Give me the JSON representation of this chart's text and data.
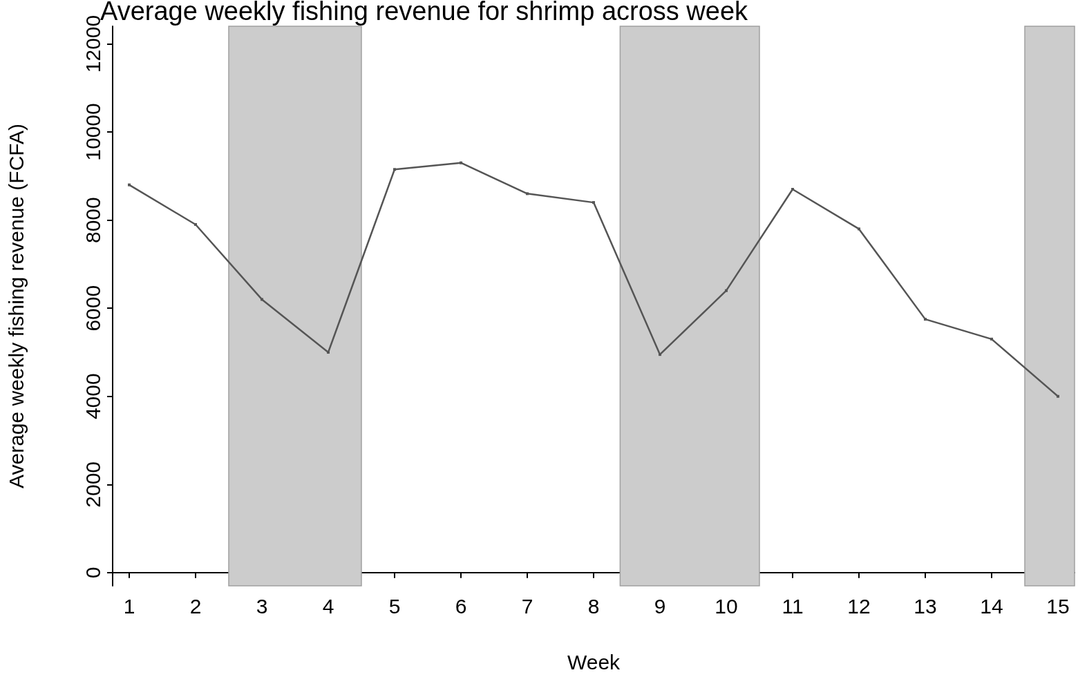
{
  "chart_data": {
    "type": "line",
    "title": "Average weekly fishing revenue for shrimp across week",
    "xlabel": "Week",
    "ylabel": "Average weekly fishing revenue (FCFA)",
    "x": [
      1,
      2,
      3,
      4,
      5,
      6,
      7,
      8,
      9,
      10,
      11,
      12,
      13,
      14,
      15
    ],
    "series": [
      {
        "color": "#555555",
        "values": [
          8800,
          7900,
          6200,
          5000,
          9150,
          9300,
          8600,
          8400,
          4950,
          6400,
          8700,
          7800,
          5750,
          5300,
          4000
        ]
      }
    ],
    "xlim": [
      0.75,
      15.25
    ],
    "xticks": [
      1,
      2,
      3,
      4,
      5,
      6,
      7,
      8,
      9,
      10,
      11,
      12,
      13,
      14,
      15
    ],
    "ylim": [
      -300,
      12400
    ],
    "yticks": [
      0,
      2000,
      4000,
      6000,
      8000,
      10000,
      12000
    ],
    "bands": [
      {
        "axis": "x",
        "from": 2.5,
        "to": 4.5,
        "color": "#cccccc"
      },
      {
        "axis": "x",
        "from": 8.4,
        "to": 10.5,
        "color": "#cccccc"
      },
      {
        "axis": "x",
        "from": 14.5,
        "to": 15.25,
        "color": "#cccccc"
      }
    ],
    "grid": false,
    "marker": "square",
    "line_style": "solid"
  }
}
